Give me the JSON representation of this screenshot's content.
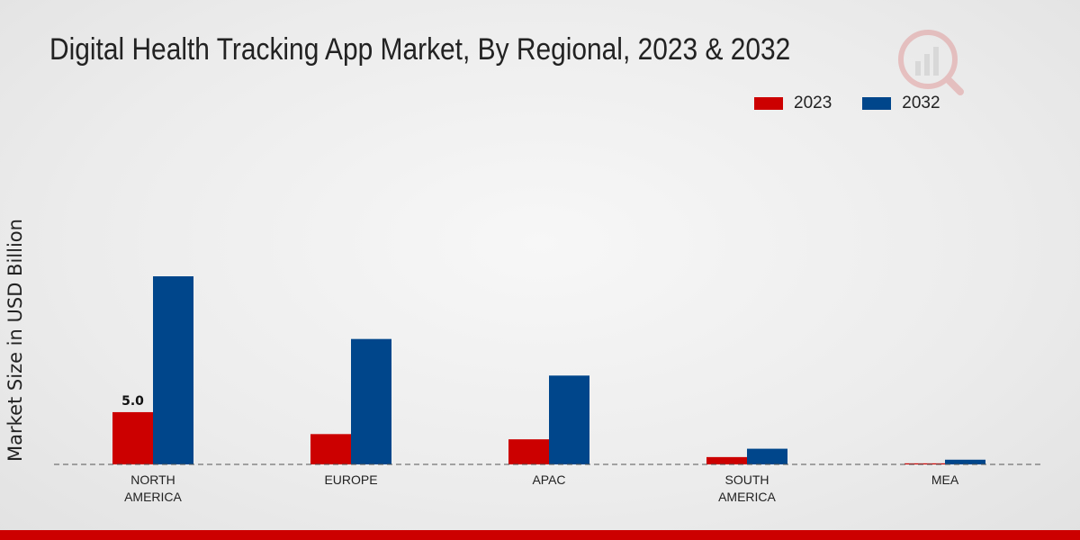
{
  "colors": {
    "series_2023": "#cc0000",
    "series_2032": "#00468b",
    "baseline": "#555555"
  },
  "chart_data": {
    "type": "bar",
    "title": "Digital Health Tracking App Market, By Regional, 2023 & 2032",
    "ylabel": "Market Size in USD Billion",
    "xlabel": "",
    "categories": [
      [
        "NORTH",
        "AMERICA"
      ],
      [
        "EUROPE"
      ],
      [
        "APAC"
      ],
      [
        "SOUTH",
        "AMERICA"
      ],
      [
        "MEA"
      ]
    ],
    "series": [
      {
        "name": "2023",
        "color": "#cc0000",
        "values": [
          5.0,
          2.9,
          2.4,
          0.7,
          0.1
        ]
      },
      {
        "name": "2032",
        "color": "#00468b",
        "values": [
          18.0,
          12.0,
          8.5,
          1.5,
          0.45
        ]
      }
    ],
    "data_labels": [
      {
        "series": 0,
        "index": 0,
        "text": "5.0"
      }
    ],
    "ylim": [
      0,
      18.0
    ],
    "grid": false,
    "legend_position": "top-right"
  }
}
